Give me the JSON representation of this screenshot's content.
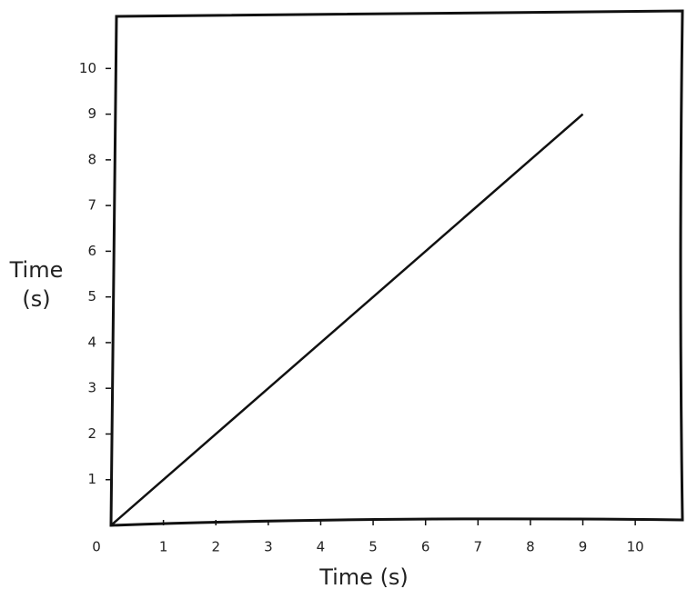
{
  "chart_data": {
    "type": "line",
    "x": [
      0,
      1,
      2,
      3,
      4,
      5,
      6,
      7,
      8,
      9
    ],
    "series": [
      {
        "name": "Time",
        "color": "#111111",
        "values": [
          0,
          1,
          2,
          3,
          4,
          5,
          6,
          7,
          8,
          9
        ]
      }
    ],
    "x_label": "Time (s)",
    "y_label": "Time (s)",
    "xlim": [
      0,
      10.9
    ],
    "ylim": [
      0,
      11.2
    ],
    "xticks": [
      0,
      1,
      2,
      3,
      4,
      5,
      6,
      7,
      8,
      9,
      10
    ],
    "yticks": [
      1,
      2,
      3,
      4,
      5,
      6,
      7,
      8,
      9,
      10
    ],
    "grid": false
  }
}
